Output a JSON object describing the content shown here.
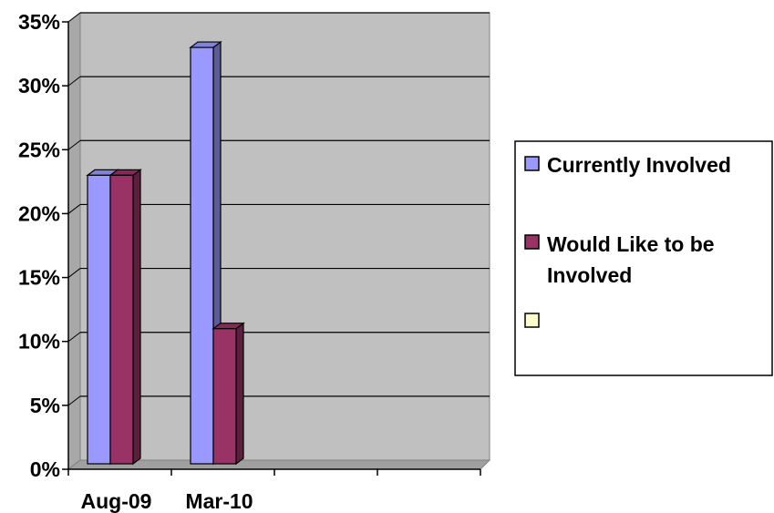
{
  "chart_data": {
    "type": "bar",
    "style": "3d-clustered-column",
    "categories": [
      "Aug-09",
      "Mar-10",
      "",
      ""
    ],
    "series": [
      {
        "name": "Currently Involved",
        "values": [
          23,
          33,
          null,
          null
        ],
        "color": "#9999FF"
      },
      {
        "name": "Would Like to be Involved",
        "values": [
          23,
          11,
          null,
          null
        ],
        "color": "#993366"
      },
      {
        "name": "",
        "values": [
          null,
          null,
          null,
          null
        ],
        "color": "#FFFFCC"
      }
    ],
    "ylim": [
      0,
      35
    ],
    "y_ticks": [
      0,
      5,
      10,
      15,
      20,
      25,
      30,
      35
    ],
    "y_tick_labels": [
      "0%",
      "5%",
      "10%",
      "15%",
      "20%",
      "25%",
      "30%",
      "35%"
    ],
    "title": "",
    "xlabel": "",
    "ylabel": "",
    "grid": true,
    "legend_position": "right",
    "plot_background": "#C0C0C0"
  }
}
